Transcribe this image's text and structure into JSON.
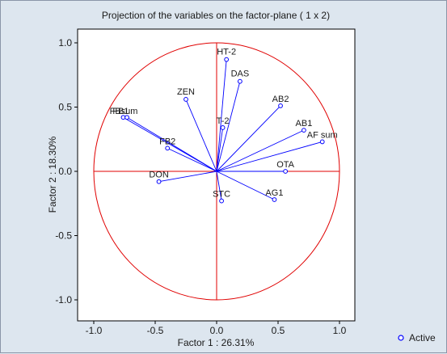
{
  "chart_data": {
    "type": "scatter",
    "title": "Projection of the variables on the factor-plane (  1 x   2)",
    "xlabel": "Factor 1 : 26.31%",
    "ylabel": "Factor 2 : 18.30%",
    "xlim": [
      -1.1,
      1.1
    ],
    "ylim": [
      -1.1,
      1.1
    ],
    "x_ticks": [
      -1.0,
      -0.5,
      0.0,
      0.5,
      1.0
    ],
    "y_ticks": [
      -1.0,
      -0.5,
      0.0,
      0.5,
      1.0
    ],
    "x_tick_labels": [
      "-1.0",
      "-0.5",
      "0.0",
      "0.5",
      "1.0"
    ],
    "y_tick_labels": [
      "-1.0",
      "-0.5",
      "0.0",
      "0.5",
      "1.0"
    ],
    "unit_circle": true,
    "legend": {
      "position": "bottom-right",
      "label": "Active"
    },
    "colors": {
      "vectors": "#0000ff",
      "circle": "#e00000",
      "axes_cross": "#e00000",
      "plot_bg": "#ffffff"
    },
    "series": [
      {
        "name": "Active",
        "points": [
          {
            "label": "HT-2",
            "x": 0.08,
            "y": 0.87
          },
          {
            "label": "DAS",
            "x": 0.19,
            "y": 0.7
          },
          {
            "label": "AB2",
            "x": 0.52,
            "y": 0.51
          },
          {
            "label": "ZEN",
            "x": -0.25,
            "y": 0.56
          },
          {
            "label": "AB1",
            "x": 0.71,
            "y": 0.32
          },
          {
            "label": "AF sum",
            "x": 0.86,
            "y": 0.23
          },
          {
            "label": "T-2",
            "x": 0.05,
            "y": 0.34
          },
          {
            "label": "FB1",
            "x": -0.76,
            "y": 0.42
          },
          {
            "label": "FBsum",
            "x": -0.73,
            "y": 0.42
          },
          {
            "label": "FB2",
            "x": -0.4,
            "y": 0.18
          },
          {
            "label": "OTA",
            "x": 0.56,
            "y": 0.0
          },
          {
            "label": "DON",
            "x": -0.47,
            "y": -0.08
          },
          {
            "label": "STC",
            "x": 0.04,
            "y": -0.23
          },
          {
            "label": "AG1",
            "x": 0.47,
            "y": -0.22
          }
        ]
      }
    ]
  }
}
